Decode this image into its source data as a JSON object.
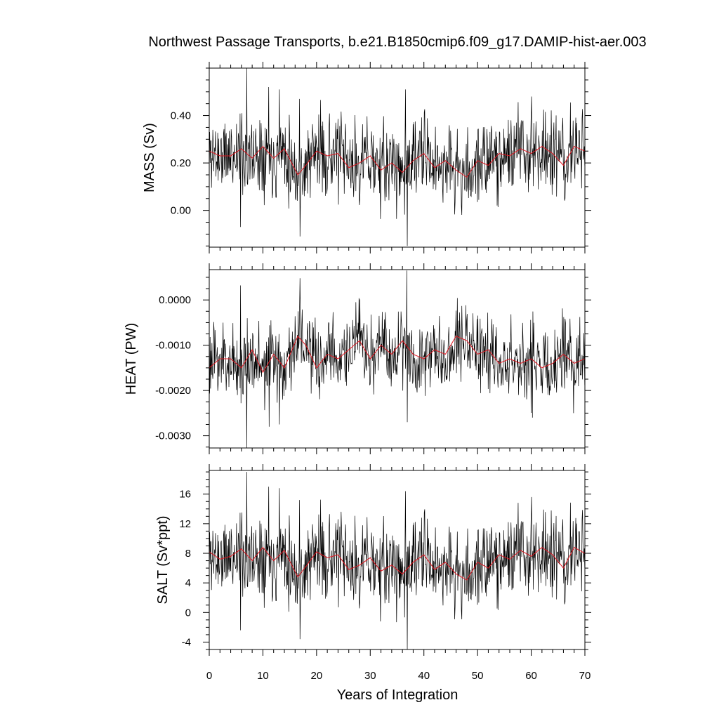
{
  "title": "Northwest Passage Transports, b.e21.B1850cmip6.f09_g17.DAMIP-hist-aer.003",
  "colors": {
    "raw": "#000000",
    "smooth": "#e0141e",
    "frame": "#000000"
  },
  "chart_data": {
    "type": "line",
    "title": "Northwest Passage Transports, b.e21.B1850cmip6.f09_g17.DAMIP-hist-aer.003",
    "xlabel": "Years of Integration",
    "xlim": [
      0,
      70
    ],
    "x_ticks": [
      0,
      10,
      20,
      30,
      40,
      50,
      60,
      70
    ],
    "x_tick_labels": [
      "0",
      "10",
      "20",
      "30",
      "40",
      "50",
      "60",
      "70"
    ],
    "x_minor_step": 2,
    "time_step": 0.0833,
    "grid": false,
    "panels": [
      {
        "name": "mass",
        "ylabel": "MASS (Sv)",
        "ylim": [
          -0.155,
          0.6
        ],
        "y_ticks": [
          0.0,
          0.2,
          0.4
        ],
        "y_tick_labels": [
          "0.00",
          "0.20",
          "0.40"
        ],
        "y_minor_step": 0.05,
        "raw_stats": {
          "mean": 0.21,
          "spread": 0.085,
          "min": -0.15,
          "max": 0.6
        },
        "smooth_knots": {
          "x": [
            0,
            2,
            4,
            6,
            8,
            10,
            12,
            14,
            16.5,
            18,
            20,
            22,
            24,
            26,
            28,
            30,
            32,
            34,
            36,
            38,
            40,
            42,
            44,
            46,
            48,
            50,
            52,
            54,
            56,
            58,
            60,
            62,
            64,
            66,
            68,
            70
          ],
          "y": [
            0.25,
            0.23,
            0.23,
            0.26,
            0.22,
            0.27,
            0.22,
            0.26,
            0.15,
            0.19,
            0.25,
            0.23,
            0.24,
            0.18,
            0.2,
            0.23,
            0.17,
            0.2,
            0.16,
            0.21,
            0.24,
            0.18,
            0.21,
            0.17,
            0.14,
            0.21,
            0.19,
            0.24,
            0.23,
            0.26,
            0.24,
            0.27,
            0.24,
            0.19,
            0.27,
            0.25
          ]
        },
        "spikes": [
          {
            "x": 7,
            "y": 0.6
          },
          {
            "x": 36.9,
            "y": -0.15
          },
          {
            "x": 36.6,
            "y": 0.51
          },
          {
            "x": 5.8,
            "y": -0.07
          },
          {
            "x": 16.9,
            "y": -0.11
          },
          {
            "x": 11.1,
            "y": 0.52
          },
          {
            "x": 13.1,
            "y": 0.51
          },
          {
            "x": 60.1,
            "y": 0.48
          },
          {
            "x": 16.8,
            "y": 0.47
          }
        ],
        "seed": 11
      },
      {
        "name": "heat",
        "ylabel": "HEAT (PW)",
        "ylim": [
          -0.00327,
          0.00067
        ],
        "y_ticks": [
          0.0,
          -0.001,
          -0.002,
          -0.003
        ],
        "y_tick_labels": [
          "0.0000",
          "-0.0010",
          "-0.0020",
          "-0.0030"
        ],
        "y_minor_step": 0.00025,
        "raw_stats": {
          "mean": -0.0012,
          "spread": 0.00042,
          "min": -0.00327,
          "max": 0.00065
        },
        "smooth_knots": {
          "x": [
            0,
            2,
            4,
            6,
            8,
            10,
            12,
            14,
            16.5,
            18,
            20,
            22,
            24,
            26,
            28,
            30,
            32,
            34,
            36,
            38,
            40,
            42,
            44,
            46,
            48,
            50,
            52,
            54,
            56,
            58,
            60,
            62,
            64,
            66,
            68,
            70
          ],
          "y": [
            -0.0015,
            -0.0013,
            -0.0013,
            -0.0015,
            -0.0011,
            -0.0016,
            -0.0012,
            -0.0015,
            -0.0008,
            -0.001,
            -0.0015,
            -0.0012,
            -0.0013,
            -0.0011,
            -0.0009,
            -0.0013,
            -0.001,
            -0.0012,
            -0.0009,
            -0.0012,
            -0.0013,
            -0.0011,
            -0.0012,
            -0.0008,
            -0.0009,
            -0.0012,
            -0.0011,
            -0.0014,
            -0.0013,
            -0.0014,
            -0.0013,
            -0.0015,
            -0.0014,
            -0.0012,
            -0.0014,
            -0.0013
          ]
        },
        "spikes": [
          {
            "x": 7,
            "y": -0.00327
          },
          {
            "x": 36.8,
            "y": 0.00065
          },
          {
            "x": 16.9,
            "y": 0.00048
          },
          {
            "x": 5.8,
            "y": 0.00032
          },
          {
            "x": 11.2,
            "y": -0.0028
          },
          {
            "x": 13.1,
            "y": -0.00275
          },
          {
            "x": 36.9,
            "y": -0.0027
          },
          {
            "x": 60.2,
            "y": -0.0026
          },
          {
            "x": 67.9,
            "y": -0.0025
          }
        ],
        "seed": 23
      },
      {
        "name": "salt",
        "ylabel": "SALT (Sv*ppt)",
        "ylim": [
          -5.0,
          19.2
        ],
        "y_ticks": [
          -4,
          0,
          4,
          8,
          12,
          16
        ],
        "y_tick_labels": [
          "-4",
          "0",
          "4",
          "8",
          "12",
          "16"
        ],
        "y_minor_step": 1,
        "raw_stats": {
          "mean": 7.0,
          "spread": 2.8,
          "min": -5.0,
          "max": 19.0
        },
        "smooth_knots": {
          "x": [
            0,
            2,
            4,
            6,
            8,
            10,
            12,
            14,
            16.5,
            18,
            20,
            22,
            24,
            26,
            28,
            30,
            32,
            34,
            36,
            38,
            40,
            42,
            44,
            46,
            48,
            50,
            52,
            54,
            56,
            58,
            60,
            62,
            64,
            66,
            68,
            70
          ],
          "y": [
            8.2,
            7.2,
            7.6,
            8.6,
            7.0,
            8.8,
            7.0,
            8.4,
            4.8,
            6.2,
            8.2,
            7.4,
            7.8,
            5.8,
            6.4,
            7.4,
            5.6,
            6.4,
            5.2,
            6.8,
            7.8,
            5.8,
            6.8,
            5.2,
            4.4,
            6.8,
            6.0,
            7.8,
            7.2,
            8.4,
            7.6,
            8.8,
            7.8,
            6.0,
            8.8,
            8.0
          ]
        },
        "spikes": [
          {
            "x": 7,
            "y": 19.0
          },
          {
            "x": 36.9,
            "y": -5.0
          },
          {
            "x": 36.6,
            "y": 16.4
          },
          {
            "x": 5.8,
            "y": -2.4
          },
          {
            "x": 16.9,
            "y": -3.6
          },
          {
            "x": 11.1,
            "y": 17.0
          },
          {
            "x": 13.1,
            "y": 16.8
          },
          {
            "x": 60.1,
            "y": 15.6
          },
          {
            "x": 16.8,
            "y": 15.2
          }
        ],
        "seed": 11
      }
    ]
  }
}
